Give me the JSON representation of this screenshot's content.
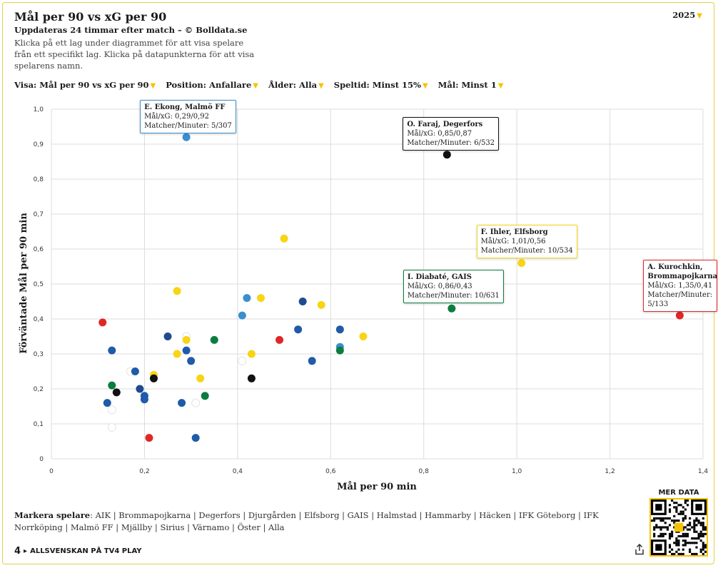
{
  "header": {
    "title": "Mål per 90 vs xG per 90",
    "subtitle": "Uppdateras 24 timmar efter match – © Bolldata.se",
    "description": "Klicka på ett lag under diagrammet för att visa spelare från ett specifikt lag. Klicka på datapunkterna för att visa spelarens namn.",
    "year": "2025"
  },
  "filters": [
    {
      "label": "Visa:",
      "value": "Mål per 90 vs xG per 90"
    },
    {
      "label": "Position:",
      "value": "Anfallare"
    },
    {
      "label": "Ålder:",
      "value": "Alla"
    },
    {
      "label": "Speltid:",
      "value": "Minst 15%"
    },
    {
      "label": "Mål:",
      "value": "Minst 1"
    }
  ],
  "colors": {
    "accent": "#f5c400",
    "black": "#111111",
    "white": "#ffffff",
    "red": "#e02727",
    "green": "#0b7d3e",
    "lightblue": "#3a8fd0",
    "navy": "#1f4a8f",
    "blue": "#1f5ba8",
    "yellow": "#f7d514"
  },
  "chart_data": {
    "type": "scatter",
    "xlabel": "Mål per 90 min",
    "ylabel": "Förväntade Mål per 90 min",
    "xlim": [
      0,
      1.4
    ],
    "ylim": [
      0,
      1.0
    ],
    "x_ticks": [
      "0",
      "0,2",
      "0,4",
      "0,6",
      "0,8",
      "1,0",
      "1,2",
      "1,4"
    ],
    "y_ticks": [
      "0",
      "0,1",
      "0,2",
      "0,3",
      "0,4",
      "0,5",
      "0,6",
      "0,7",
      "0,8",
      "0,9",
      "1,0"
    ],
    "grid": true,
    "points": [
      {
        "x": 0.29,
        "y": 0.92,
        "color": "lightblue"
      },
      {
        "x": 0.85,
        "y": 0.87,
        "color": "black"
      },
      {
        "x": 1.01,
        "y": 0.56,
        "color": "yellow"
      },
      {
        "x": 0.86,
        "y": 0.43,
        "color": "green"
      },
      {
        "x": 1.35,
        "y": 0.41,
        "color": "red"
      },
      {
        "x": 0.5,
        "y": 0.63,
        "color": "yellow"
      },
      {
        "x": 0.27,
        "y": 0.48,
        "color": "yellow"
      },
      {
        "x": 0.42,
        "y": 0.46,
        "color": "lightblue"
      },
      {
        "x": 0.45,
        "y": 0.46,
        "color": "yellow"
      },
      {
        "x": 0.54,
        "y": 0.45,
        "color": "navy"
      },
      {
        "x": 0.58,
        "y": 0.44,
        "color": "yellow"
      },
      {
        "x": 0.41,
        "y": 0.41,
        "color": "lightblue"
      },
      {
        "x": 0.11,
        "y": 0.39,
        "color": "red"
      },
      {
        "x": 0.53,
        "y": 0.37,
        "color": "blue"
      },
      {
        "x": 0.62,
        "y": 0.37,
        "color": "blue"
      },
      {
        "x": 0.25,
        "y": 0.35,
        "color": "navy"
      },
      {
        "x": 0.29,
        "y": 0.35,
        "color": "white"
      },
      {
        "x": 0.29,
        "y": 0.34,
        "color": "yellow"
      },
      {
        "x": 0.35,
        "y": 0.34,
        "color": "green"
      },
      {
        "x": 0.49,
        "y": 0.34,
        "color": "red"
      },
      {
        "x": 0.67,
        "y": 0.35,
        "color": "yellow"
      },
      {
        "x": 0.62,
        "y": 0.32,
        "color": "lightblue"
      },
      {
        "x": 0.62,
        "y": 0.31,
        "color": "green"
      },
      {
        "x": 0.13,
        "y": 0.31,
        "color": "blue"
      },
      {
        "x": 0.29,
        "y": 0.31,
        "color": "blue"
      },
      {
        "x": 0.27,
        "y": 0.3,
        "color": "yellow"
      },
      {
        "x": 0.43,
        "y": 0.3,
        "color": "yellow"
      },
      {
        "x": 0.41,
        "y": 0.28,
        "color": "white"
      },
      {
        "x": 0.3,
        "y": 0.28,
        "color": "blue"
      },
      {
        "x": 0.56,
        "y": 0.28,
        "color": "blue"
      },
      {
        "x": 0.17,
        "y": 0.25,
        "color": "white"
      },
      {
        "x": 0.18,
        "y": 0.25,
        "color": "blue"
      },
      {
        "x": 0.22,
        "y": 0.24,
        "color": "yellow"
      },
      {
        "x": 0.22,
        "y": 0.23,
        "color": "black"
      },
      {
        "x": 0.32,
        "y": 0.23,
        "color": "yellow"
      },
      {
        "x": 0.43,
        "y": 0.23,
        "color": "black"
      },
      {
        "x": 0.13,
        "y": 0.21,
        "color": "green"
      },
      {
        "x": 0.14,
        "y": 0.19,
        "color": "black"
      },
      {
        "x": 0.19,
        "y": 0.2,
        "color": "navy"
      },
      {
        "x": 0.2,
        "y": 0.18,
        "color": "blue"
      },
      {
        "x": 0.2,
        "y": 0.17,
        "color": "blue"
      },
      {
        "x": 0.33,
        "y": 0.18,
        "color": "green"
      },
      {
        "x": 0.12,
        "y": 0.16,
        "color": "blue"
      },
      {
        "x": 0.28,
        "y": 0.16,
        "color": "blue"
      },
      {
        "x": 0.31,
        "y": 0.16,
        "color": "white"
      },
      {
        "x": 0.13,
        "y": 0.14,
        "color": "white"
      },
      {
        "x": 0.13,
        "y": 0.09,
        "color": "white"
      },
      {
        "x": 0.21,
        "y": 0.06,
        "color": "red"
      },
      {
        "x": 0.31,
        "y": 0.06,
        "color": "blue"
      }
    ],
    "labels": [
      {
        "name": "E. Ekong, Malmö FF",
        "line1": "Mål/xG: 0,29/0,92",
        "line2": "Matcher/Minuter: 5/307",
        "x": 0.29,
        "y": 0.92,
        "border": "#3a8fd0"
      },
      {
        "name": "O. Faraj, Degerfors",
        "line1": "Mål/xG: 0,85/0,87",
        "line2": "Matcher/Minuter: 6/532",
        "x": 0.85,
        "y": 0.87,
        "border": "#111111"
      },
      {
        "name": "F. Ihler, Elfsborg",
        "line1": "Mål/xG: 1,01/0,56",
        "line2": "Matcher/Minuter: 10/534",
        "x": 1.01,
        "y": 0.56,
        "border": "#f7d514"
      },
      {
        "name": "I. Diabaté, GAIS",
        "line1": "Mål/xG: 0,86/0,43",
        "line2": "Matcher/Minuter: 10/631",
        "x": 0.86,
        "y": 0.43,
        "border": "#0b7d3e"
      },
      {
        "name": "A. Kurochkin, Brommapojkarna",
        "line1": "Mål/xG: 1,35/0,41",
        "line2": "Matcher/Minuter: 5/133",
        "x": 1.35,
        "y": 0.41,
        "border": "#e02727"
      }
    ]
  },
  "markera": {
    "label": "Markera spelare",
    "teams": [
      "AIK",
      "Brommapojkarna",
      "Degerfors",
      "Djurgården",
      "Elfsborg",
      "GAIS",
      "Halmstad",
      "Hammarby",
      "Häcken",
      "IFK Göteborg",
      "IFK Norrköping",
      "Malmö FF",
      "Mjällby",
      "Sirius",
      "Värnamo",
      "Öster",
      "Alla"
    ]
  },
  "footer": {
    "number": "4",
    "text": "ALLSVENSKAN PÅ TV4 PLAY",
    "share_icon": "share-icon",
    "qr_title": "MER DATA"
  }
}
